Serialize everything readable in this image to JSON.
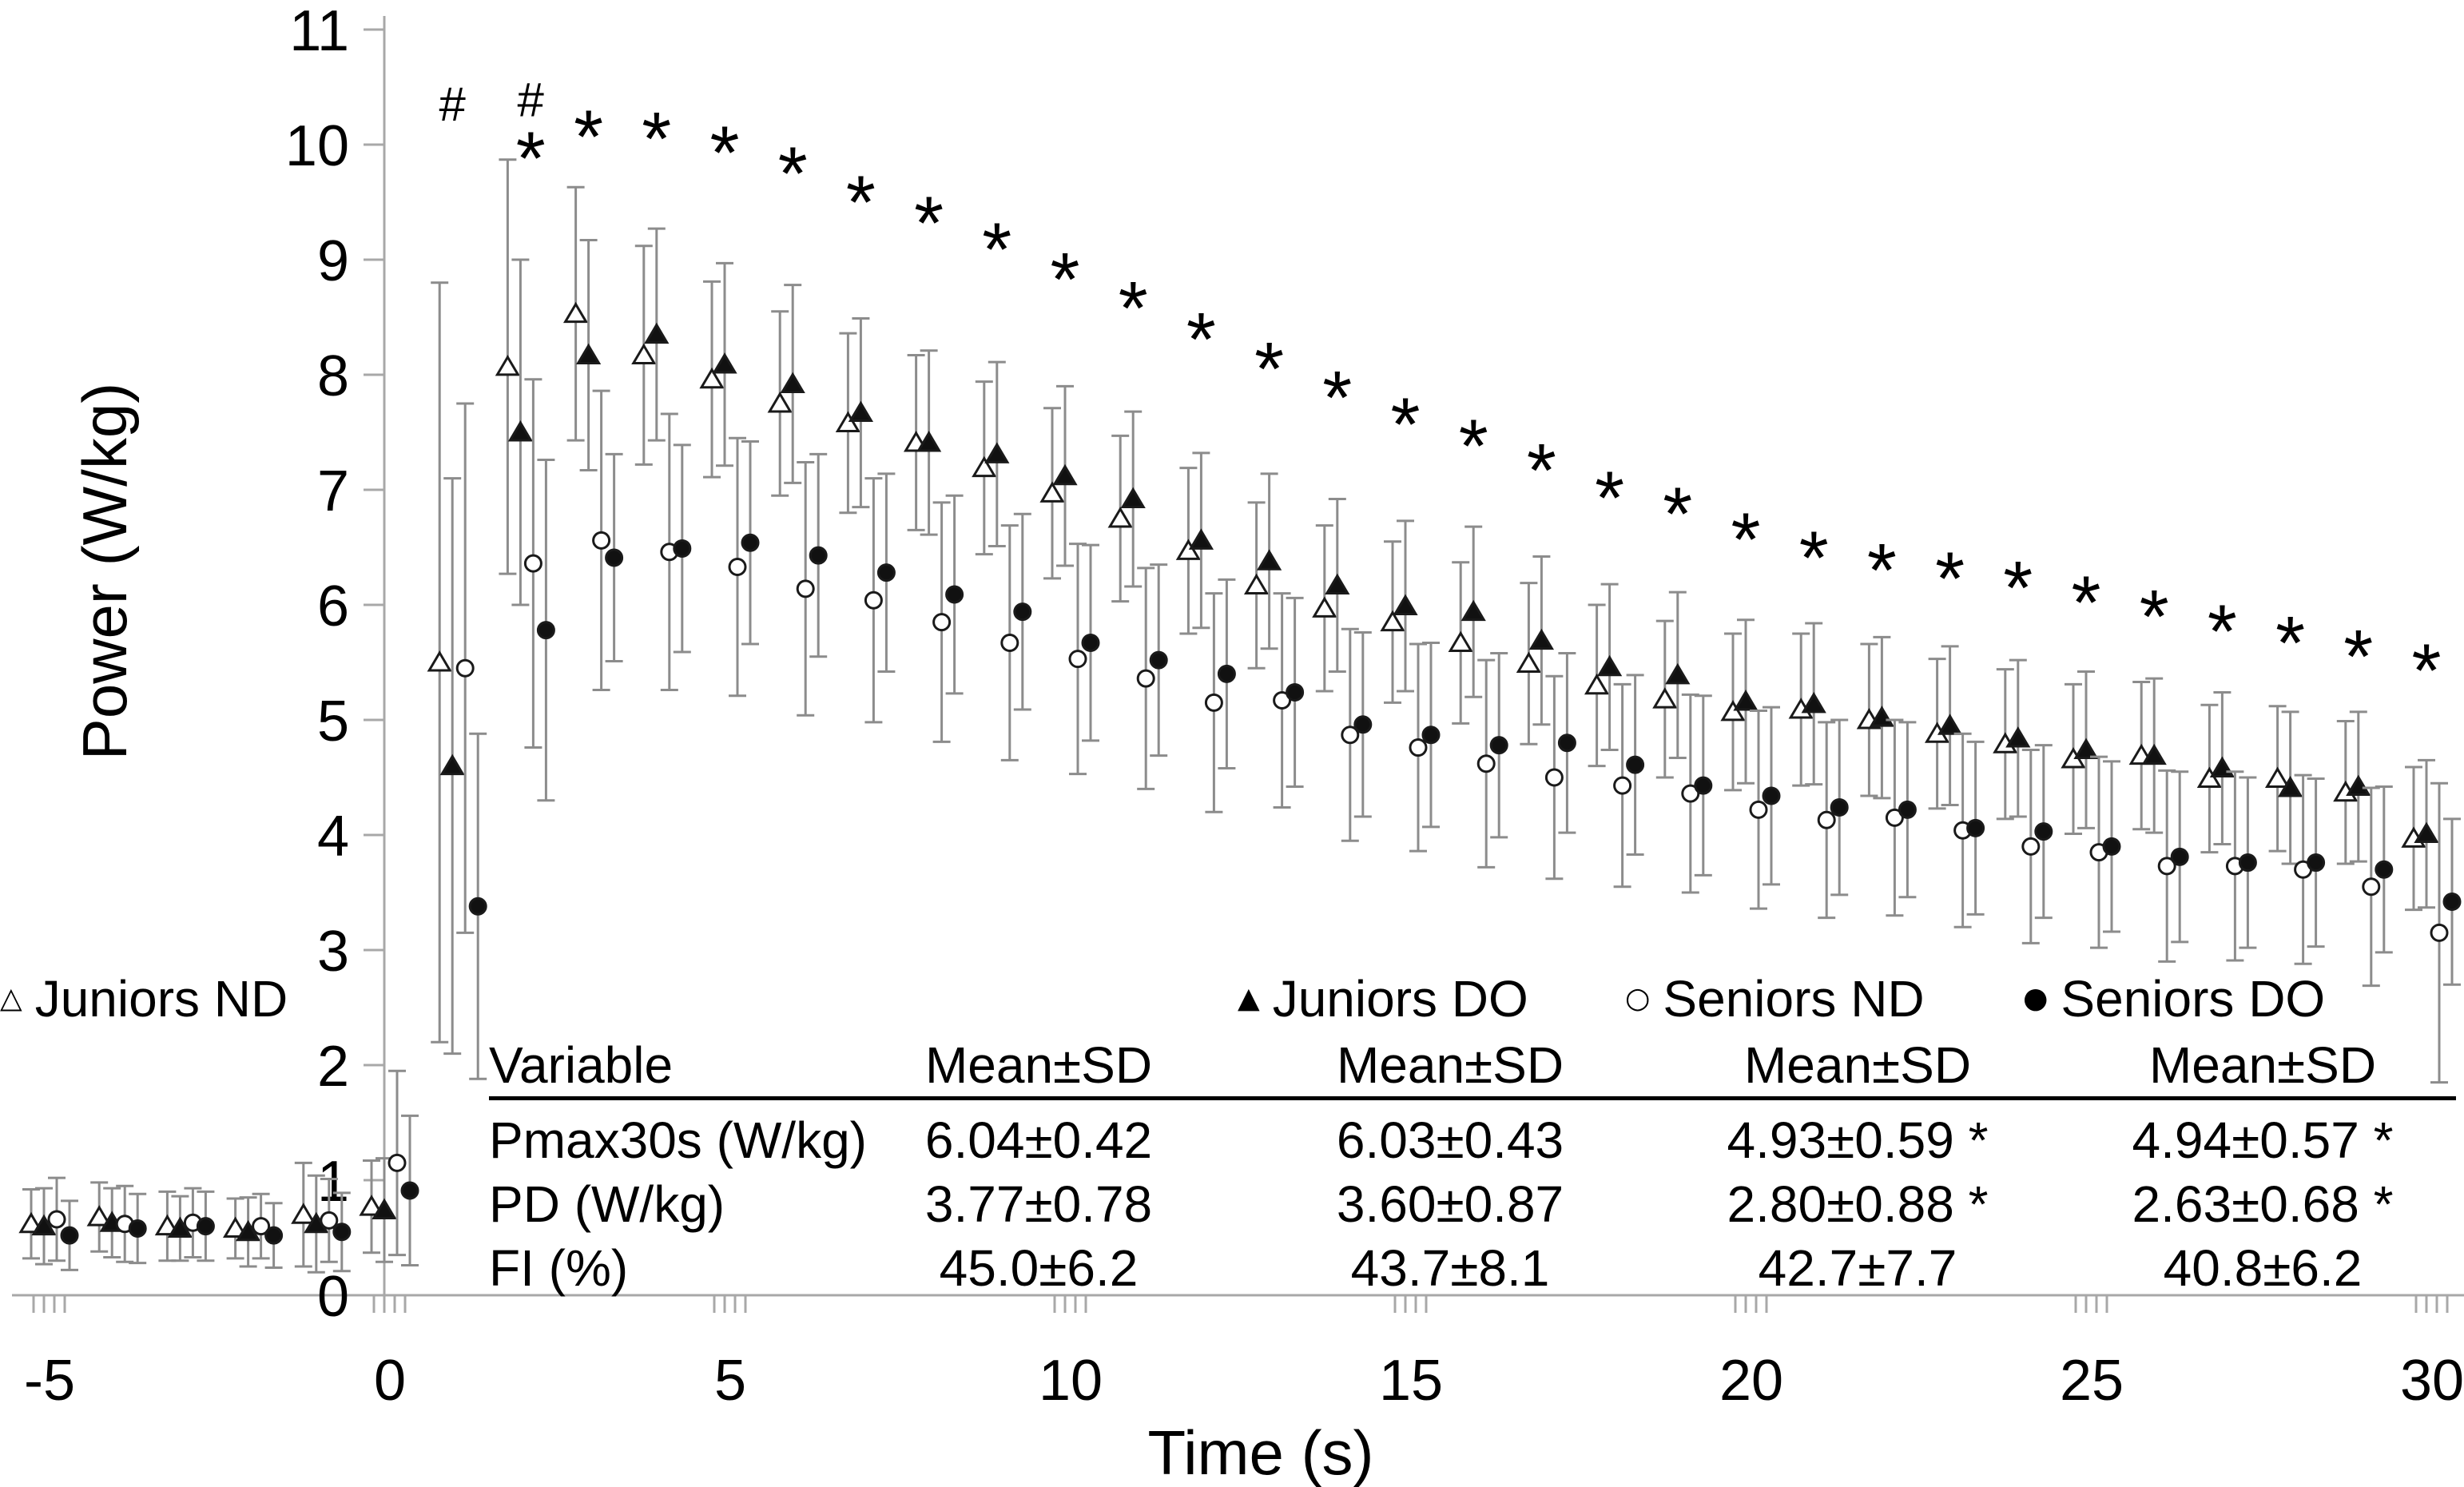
{
  "figure": {
    "type_note": "scatter plot with SD error bars and embedded statistics table"
  },
  "colors": {
    "marker_stroke": "#1a1a1a",
    "marker_fill_open": "#ffffff",
    "marker_fill_solid": "#111111",
    "error_bar": "#8c8c8c",
    "axis_line": "#a8a8a8",
    "text": "#000000"
  },
  "legend": {
    "items": [
      {
        "label": "Juniors ND",
        "marker": "triangle-open",
        "symbol": "△"
      },
      {
        "label": "Juniors DO",
        "marker": "triangle-filled",
        "symbol": "▲"
      },
      {
        "label": "Seniors ND",
        "marker": "circle-open",
        "symbol": "○"
      },
      {
        "label": "Seniors DO",
        "marker": "circle-filled",
        "symbol": "●"
      }
    ]
  },
  "table": {
    "variable_header": "Variable",
    "mean_sd_header": "Mean±SD",
    "rows": [
      {
        "variable": "Pmax30s (W/kg)",
        "values": [
          "6.04±0.42",
          "6.03±0.43",
          "4.93±0.59 *",
          "4.94±0.57 *"
        ]
      },
      {
        "variable": "PD (W/kg)",
        "values": [
          "3.77±0.78",
          "3.60±0.87",
          "2.80±0.88 *",
          "2.63±0.68 *"
        ]
      },
      {
        "variable": "FI (%)",
        "values": [
          "45.0±6.2",
          "43.7±8.1",
          "42.7±7.7",
          "40.8±6.2"
        ]
      }
    ]
  },
  "chart_data": {
    "type": "scatter",
    "title": "",
    "xlabel": "Time (s)",
    "ylabel": "Power (W/kg)",
    "xlim": [
      -5.5,
      30.7
    ],
    "ylim": [
      0,
      11
    ],
    "x_ticks": [
      -5,
      0,
      5,
      10,
      15,
      20,
      25,
      30
    ],
    "y_ticks": [
      0,
      1,
      2,
      3,
      4,
      5,
      6,
      7,
      8,
      9,
      10,
      11
    ],
    "grid": false,
    "legend_position": "inside-bottom",
    "point_format": "[time_s, mean_power_W_per_kg, sd]",
    "series": [
      {
        "name": "Juniors ND",
        "marker": "triangle-open",
        "points": [
          [
            -5,
            0.62,
            0.3
          ],
          [
            -4,
            0.68,
            0.3
          ],
          [
            -3,
            0.6,
            0.3
          ],
          [
            -2,
            0.58,
            0.26
          ],
          [
            -1,
            0.7,
            0.45
          ],
          [
            0,
            0.77,
            0.4
          ],
          [
            1,
            5.5,
            3.3
          ],
          [
            2,
            8.07,
            1.8
          ],
          [
            3,
            8.53,
            1.1
          ],
          [
            4,
            8.17,
            0.95
          ],
          [
            5,
            7.96,
            0.85
          ],
          [
            6,
            7.75,
            0.8
          ],
          [
            7,
            7.58,
            0.78
          ],
          [
            8,
            7.41,
            0.76
          ],
          [
            9,
            7.19,
            0.75
          ],
          [
            10,
            6.97,
            0.74
          ],
          [
            11,
            6.75,
            0.72
          ],
          [
            12,
            6.47,
            0.72
          ],
          [
            13,
            6.17,
            0.72
          ],
          [
            14,
            5.97,
            0.72
          ],
          [
            15,
            5.85,
            0.7
          ],
          [
            16,
            5.67,
            0.7
          ],
          [
            17,
            5.49,
            0.7
          ],
          [
            18,
            5.3,
            0.7
          ],
          [
            19,
            5.18,
            0.68
          ],
          [
            20,
            5.07,
            0.68
          ],
          [
            21,
            5.09,
            0.66
          ],
          [
            22,
            5.0,
            0.66
          ],
          [
            23,
            4.88,
            0.65
          ],
          [
            24,
            4.79,
            0.65
          ],
          [
            25,
            4.66,
            0.65
          ],
          [
            26,
            4.69,
            0.64
          ],
          [
            27,
            4.49,
            0.64
          ],
          [
            28,
            4.49,
            0.63
          ],
          [
            29,
            4.37,
            0.62
          ],
          [
            30,
            3.97,
            0.62
          ]
        ]
      },
      {
        "name": "Juniors DO",
        "marker": "triangle-filled",
        "points": [
          [
            -5,
            0.6,
            0.33
          ],
          [
            -4,
            0.63,
            0.3
          ],
          [
            -3,
            0.58,
            0.28
          ],
          [
            -2,
            0.55,
            0.3
          ],
          [
            -1,
            0.62,
            0.42
          ],
          [
            0,
            0.74,
            0.45
          ],
          [
            1,
            4.6,
            2.5
          ],
          [
            2,
            7.5,
            1.5
          ],
          [
            3,
            8.17,
            1.0
          ],
          [
            4,
            8.35,
            0.92
          ],
          [
            5,
            8.09,
            0.88
          ],
          [
            6,
            7.92,
            0.86
          ],
          [
            7,
            7.67,
            0.82
          ],
          [
            8,
            7.41,
            0.8
          ],
          [
            9,
            7.31,
            0.8
          ],
          [
            10,
            7.12,
            0.78
          ],
          [
            11,
            6.92,
            0.76
          ],
          [
            12,
            6.56,
            0.76
          ],
          [
            13,
            6.38,
            0.76
          ],
          [
            14,
            6.17,
            0.75
          ],
          [
            15,
            5.99,
            0.74
          ],
          [
            16,
            5.94,
            0.74
          ],
          [
            17,
            5.69,
            0.73
          ],
          [
            18,
            5.46,
            0.72
          ],
          [
            19,
            5.39,
            0.72
          ],
          [
            20,
            5.16,
            0.71
          ],
          [
            21,
            5.14,
            0.7
          ],
          [
            22,
            5.02,
            0.7
          ],
          [
            23,
            4.95,
            0.69
          ],
          [
            24,
            4.84,
            0.68
          ],
          [
            25,
            4.74,
            0.68
          ],
          [
            26,
            4.69,
            0.67
          ],
          [
            27,
            4.58,
            0.66
          ],
          [
            28,
            4.41,
            0.66
          ],
          [
            29,
            4.42,
            0.65
          ],
          [
            30,
            4.01,
            0.64
          ]
        ]
      },
      {
        "name": "Seniors ND",
        "marker": "circle-open",
        "points": [
          [
            -5,
            0.66,
            0.36
          ],
          [
            -4,
            0.62,
            0.33
          ],
          [
            -3,
            0.63,
            0.3
          ],
          [
            -2,
            0.6,
            0.28
          ],
          [
            -1,
            0.65,
            0.36
          ],
          [
            0,
            1.15,
            0.8
          ],
          [
            1,
            5.45,
            2.3
          ],
          [
            2,
            6.36,
            1.6
          ],
          [
            3,
            6.56,
            1.3
          ],
          [
            4,
            6.46,
            1.2
          ],
          [
            5,
            6.33,
            1.12
          ],
          [
            6,
            6.14,
            1.1
          ],
          [
            7,
            6.04,
            1.06
          ],
          [
            8,
            5.85,
            1.04
          ],
          [
            9,
            5.67,
            1.02
          ],
          [
            10,
            5.53,
            1.0
          ],
          [
            11,
            5.36,
            0.96
          ],
          [
            12,
            5.15,
            0.95
          ],
          [
            13,
            5.17,
            0.93
          ],
          [
            14,
            4.87,
            0.92
          ],
          [
            15,
            4.76,
            0.9
          ],
          [
            16,
            4.62,
            0.9
          ],
          [
            17,
            4.5,
            0.88
          ],
          [
            18,
            4.43,
            0.88
          ],
          [
            19,
            4.36,
            0.86
          ],
          [
            20,
            4.22,
            0.86
          ],
          [
            21,
            4.13,
            0.85
          ],
          [
            22,
            4.15,
            0.85
          ],
          [
            23,
            4.04,
            0.84
          ],
          [
            24,
            3.9,
            0.84
          ],
          [
            25,
            3.85,
            0.83
          ],
          [
            26,
            3.73,
            0.83
          ],
          [
            27,
            3.73,
            0.82
          ],
          [
            28,
            3.7,
            0.82
          ],
          [
            29,
            3.55,
            0.86
          ],
          [
            30,
            3.15,
            1.3
          ]
        ]
      },
      {
        "name": "Seniors DO",
        "marker": "circle-filled",
        "points": [
          [
            -5,
            0.52,
            0.3
          ],
          [
            -4,
            0.58,
            0.3
          ],
          [
            -3,
            0.6,
            0.3
          ],
          [
            -2,
            0.52,
            0.28
          ],
          [
            -1,
            0.55,
            0.34
          ],
          [
            0,
            0.91,
            0.65
          ],
          [
            1,
            3.38,
            1.5
          ],
          [
            2,
            5.78,
            1.48
          ],
          [
            3,
            6.41,
            0.9
          ],
          [
            4,
            6.49,
            0.9
          ],
          [
            5,
            6.54,
            0.88
          ],
          [
            6,
            6.43,
            0.88
          ],
          [
            7,
            6.28,
            0.86
          ],
          [
            8,
            6.09,
            0.86
          ],
          [
            9,
            5.94,
            0.85
          ],
          [
            10,
            5.67,
            0.85
          ],
          [
            11,
            5.52,
            0.83
          ],
          [
            12,
            5.4,
            0.82
          ],
          [
            13,
            5.24,
            0.82
          ],
          [
            14,
            4.96,
            0.8
          ],
          [
            15,
            4.87,
            0.8
          ],
          [
            16,
            4.78,
            0.8
          ],
          [
            17,
            4.8,
            0.78
          ],
          [
            18,
            4.61,
            0.78
          ],
          [
            19,
            4.43,
            0.78
          ],
          [
            20,
            4.34,
            0.77
          ],
          [
            21,
            4.24,
            0.76
          ],
          [
            22,
            4.22,
            0.76
          ],
          [
            23,
            4.06,
            0.75
          ],
          [
            24,
            4.03,
            0.75
          ],
          [
            25,
            3.9,
            0.74
          ],
          [
            26,
            3.81,
            0.74
          ],
          [
            27,
            3.76,
            0.74
          ],
          [
            28,
            3.76,
            0.73
          ],
          [
            29,
            3.7,
            0.72
          ],
          [
            30,
            3.42,
            0.72
          ]
        ]
      }
    ],
    "annotations": {
      "hash_symbol": "#",
      "star_symbol": "*",
      "hash": [
        [
          1.0,
          10.36
        ],
        [
          2.15,
          10.4
        ]
      ],
      "star": [
        [
          2.15,
          10.03
        ],
        [
          3,
          10.22
        ],
        [
          4,
          10.2
        ],
        [
          5,
          10.08
        ],
        [
          6,
          9.9
        ],
        [
          7,
          9.65
        ],
        [
          8,
          9.47
        ],
        [
          9,
          9.24
        ],
        [
          10,
          8.98
        ],
        [
          11,
          8.73
        ],
        [
          12,
          8.46
        ],
        [
          13,
          8.2
        ],
        [
          14,
          7.95
        ],
        [
          15,
          7.72
        ],
        [
          16,
          7.53
        ],
        [
          17,
          7.32
        ],
        [
          18,
          7.08
        ],
        [
          19,
          6.94
        ],
        [
          20,
          6.72
        ],
        [
          21,
          6.56
        ],
        [
          22,
          6.45
        ],
        [
          23,
          6.38
        ],
        [
          24,
          6.3
        ],
        [
          25,
          6.17
        ],
        [
          26,
          6.05
        ],
        [
          27,
          5.92
        ],
        [
          28,
          5.82
        ],
        [
          29,
          5.7
        ],
        [
          30,
          5.58
        ]
      ]
    }
  }
}
